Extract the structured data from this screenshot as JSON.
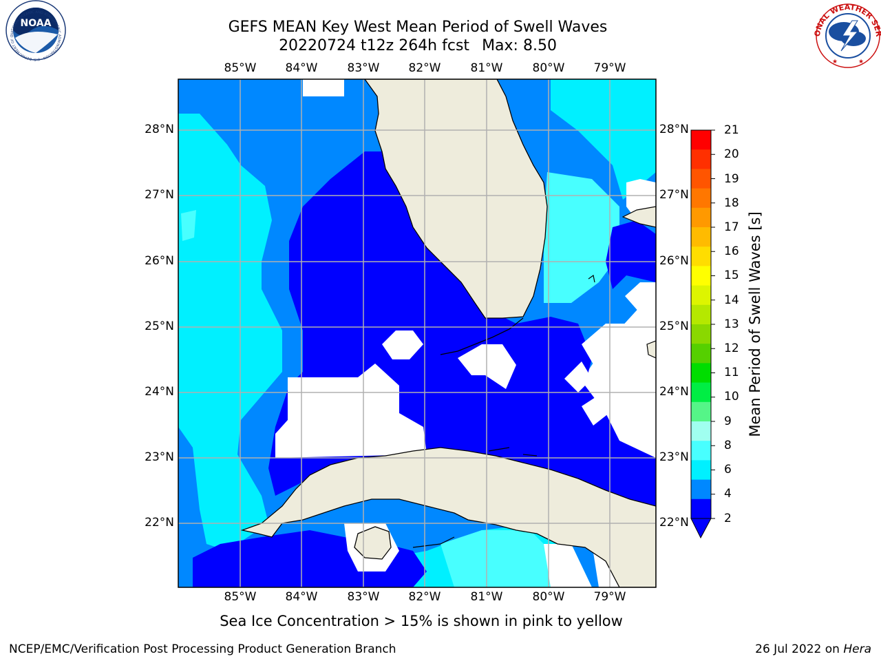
{
  "header": {
    "title_line1": "GEFS MEAN Key West Mean Period of Swell Waves",
    "title_line2": "20220724 t12z 264h fcst",
    "max_text": "Max: 8.50"
  },
  "map": {
    "lon_labels": [
      "85°W",
      "84°W",
      "83°W",
      "82°W",
      "81°W",
      "80°W",
      "79°W"
    ],
    "lat_labels": [
      "28°N",
      "27°N",
      "26°N",
      "25°N",
      "24°N",
      "23°N",
      "22°N"
    ],
    "land_color": "#eeecdc",
    "water_color": "#ffffff",
    "grid_color": "#b0b0b0",
    "land_labels": []
  },
  "colorbar": {
    "label": "Mean Period of Swell Waves [s]",
    "ticks": [
      "21",
      "20",
      "19",
      "18",
      "17",
      "16",
      "15",
      "14",
      "13",
      "12",
      "11",
      "10",
      "9",
      "8",
      "6",
      "4",
      "2"
    ],
    "colors": [
      "#ff0000",
      "#ff3000",
      "#ff5500",
      "#ff7700",
      "#ff9900",
      "#ffbb00",
      "#ffdd00",
      "#ffff00",
      "#ddf500",
      "#b5e800",
      "#8ad800",
      "#55d000",
      "#00dd00",
      "#00ee44",
      "#55f588",
      "#a0fff0",
      "#48ffff",
      "#00f0ff",
      "#0088ff",
      "#0000ff"
    ]
  },
  "footer": {
    "note": "Sea Ice Concentration > 15% is shown in pink to yellow",
    "credit": "NCEP/EMC/Verification Post Processing Product Generation Branch",
    "date": "26 Jul 2022 on",
    "host": "Hera"
  },
  "logos": {
    "noaa_text": "NOAA",
    "noaa_ring": "NATIONAL OCEANIC AND ATMOSPHERIC ADMINISTRATION · U.S. DEPARTMENT OF COMMERCE",
    "nws_ring": "NATIONAL WEATHER SERVICE"
  }
}
